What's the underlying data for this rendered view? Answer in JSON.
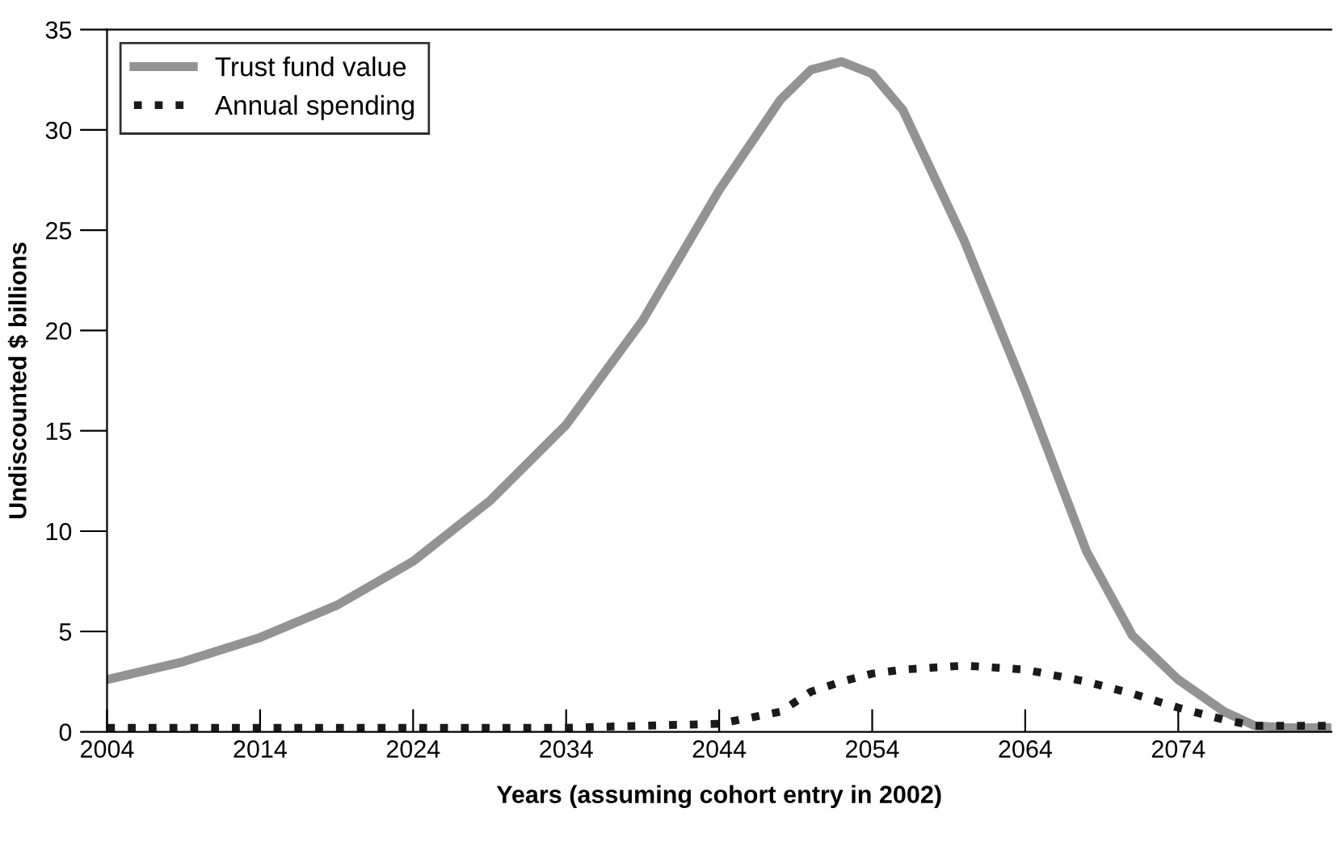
{
  "chart_data": {
    "type": "line",
    "xlabel": "Years (assuming cohort entry in 2002)",
    "ylabel": "Undiscounted $ billions",
    "x": [
      2004,
      2009,
      2014,
      2019,
      2024,
      2029,
      2034,
      2039,
      2044,
      2048,
      2050,
      2052,
      2054,
      2056,
      2060,
      2064,
      2068,
      2071,
      2074,
      2077,
      2079,
      2081,
      2084
    ],
    "series": [
      {
        "name": "Trust fund value",
        "color": "#939393",
        "line_style": "solid",
        "values": [
          2.6,
          3.5,
          4.7,
          6.3,
          8.5,
          11.5,
          15.3,
          20.5,
          27.0,
          31.5,
          33.0,
          33.4,
          32.8,
          31.0,
          24.5,
          17.0,
          9.0,
          4.8,
          2.6,
          1.0,
          0.3,
          0.2,
          0.2
        ]
      },
      {
        "name": "Annual spending",
        "color": "#1a1a1a",
        "line_style": "dotted",
        "values": [
          0.2,
          0.2,
          0.2,
          0.2,
          0.2,
          0.2,
          0.2,
          0.3,
          0.4,
          1.0,
          2.0,
          2.5,
          2.9,
          3.1,
          3.3,
          3.1,
          2.5,
          1.9,
          1.2,
          0.6,
          0.3,
          0.3,
          0.3
        ]
      }
    ],
    "xlim": [
      2004,
      2084
    ],
    "ylim": [
      0,
      35
    ],
    "xticks": [
      2004,
      2014,
      2024,
      2034,
      2044,
      2054,
      2064,
      2074
    ],
    "yticks": [
      0,
      5,
      10,
      15,
      20,
      25,
      30,
      35
    ],
    "grid": false,
    "legend": "top left"
  }
}
